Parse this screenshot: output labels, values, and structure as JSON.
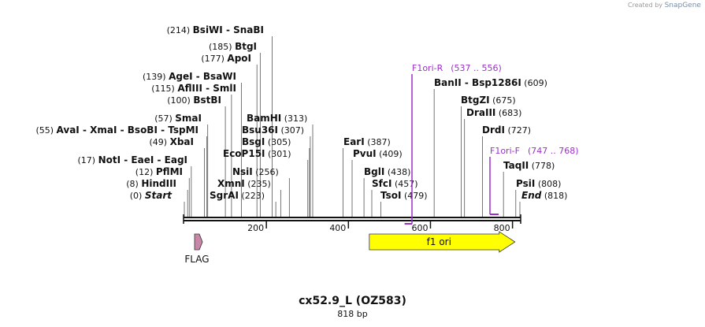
{
  "branding": {
    "created_by": "Created by",
    "app": "SnapGene"
  },
  "map": {
    "title": "cx52.9_L (OZ583)",
    "length_label": "818 bp",
    "total_bp": 818
  },
  "ruler": {
    "ticks": [
      200,
      400,
      600,
      800
    ]
  },
  "sites": [
    {
      "pos": "(0)",
      "names": [
        "Start"
      ],
      "italic": true,
      "bp": 0
    },
    {
      "pos": "(8)",
      "names": [
        "HindIII"
      ],
      "bp": 8
    },
    {
      "pos": "(12)",
      "names": [
        "PflMI"
      ],
      "bp": 12
    },
    {
      "pos": "(17)",
      "names": [
        "NotI",
        "EaeI",
        "EagI"
      ],
      "bp": 17
    },
    {
      "pos": "(49)",
      "names": [
        "XbaI"
      ],
      "bp": 49
    },
    {
      "pos": "(55)",
      "names": [
        "AvaI",
        "XmaI",
        "BsoBI",
        "TspMI"
      ],
      "bp": 55
    },
    {
      "pos": "(57)",
      "names": [
        "SmaI"
      ],
      "bp": 57
    },
    {
      "pos": "(100)",
      "names": [
        "BstBI"
      ],
      "bp": 100
    },
    {
      "pos": "(115)",
      "names": [
        "AflIII",
        "SmlI"
      ],
      "bp": 115
    },
    {
      "pos": "(139)",
      "names": [
        "AgeI",
        "BsaWI"
      ],
      "bp": 139
    },
    {
      "pos": "(177)",
      "names": [
        "ApoI"
      ],
      "bp": 177
    },
    {
      "pos": "(185)",
      "names": [
        "BtgI"
      ],
      "bp": 185
    },
    {
      "pos": "(214)",
      "names": [
        "BsiWI",
        "SnaBI"
      ],
      "bp": 214
    },
    {
      "pos": "(223)",
      "names": [
        "SgrAI"
      ],
      "bp": 223
    },
    {
      "pos": "(235)",
      "names": [
        "XmnI"
      ],
      "bp": 235
    },
    {
      "pos": "(256)",
      "names": [
        "NsiI"
      ],
      "bp": 256
    },
    {
      "pos": "(301)",
      "names": [
        "EcoP15I"
      ],
      "bp": 301
    },
    {
      "pos": "(305)",
      "names": [
        "BsgI"
      ],
      "bp": 305
    },
    {
      "pos": "(307)",
      "names": [
        "Bsu36I"
      ],
      "bp": 307
    },
    {
      "pos": "(313)",
      "names": [
        "BamHI"
      ],
      "bp": 313
    },
    {
      "pos": "(387)",
      "names": [
        "EarI"
      ],
      "bp": 387
    },
    {
      "pos": "(409)",
      "names": [
        "PvuI"
      ],
      "bp": 409
    },
    {
      "pos": "(438)",
      "names": [
        "BglI"
      ],
      "bp": 438
    },
    {
      "pos": "(457)",
      "names": [
        "SfcI"
      ],
      "bp": 457
    },
    {
      "pos": "(479)",
      "names": [
        "TsoI"
      ],
      "bp": 479
    },
    {
      "pos": "(609)",
      "names": [
        "BanII",
        "Bsp1286I"
      ],
      "bp": 609
    },
    {
      "pos": "(675)",
      "names": [
        "BtgZI"
      ],
      "bp": 675
    },
    {
      "pos": "(683)",
      "names": [
        "DraIII"
      ],
      "bp": 683
    },
    {
      "pos": "(727)",
      "names": [
        "DrdI"
      ],
      "bp": 727
    },
    {
      "pos": "(778)",
      "names": [
        "TaqII"
      ],
      "bp": 778
    },
    {
      "pos": "(808)",
      "names": [
        "PsiI"
      ],
      "bp": 808
    },
    {
      "pos": "(818)",
      "names": [
        "End"
      ],
      "italic": true,
      "bp": 818
    }
  ],
  "primers": [
    {
      "name": "F1ori-R",
      "range": "(537 .. 556)",
      "start": 537,
      "end": 556,
      "direction": "reverse"
    },
    {
      "name": "F1ori-F",
      "range": "(747 .. 768)",
      "start": 747,
      "end": 768,
      "direction": "forward"
    }
  ],
  "features": [
    {
      "name": "FLAG",
      "start": 25,
      "end": 48,
      "direction": "forward",
      "color": "#c987a8"
    },
    {
      "name": "f1 ori",
      "start": 451,
      "end": 806,
      "direction": "forward",
      "color": "#ffff00"
    }
  ],
  "colors": {
    "primer": "#9b30c8",
    "backbone": "#111111"
  }
}
